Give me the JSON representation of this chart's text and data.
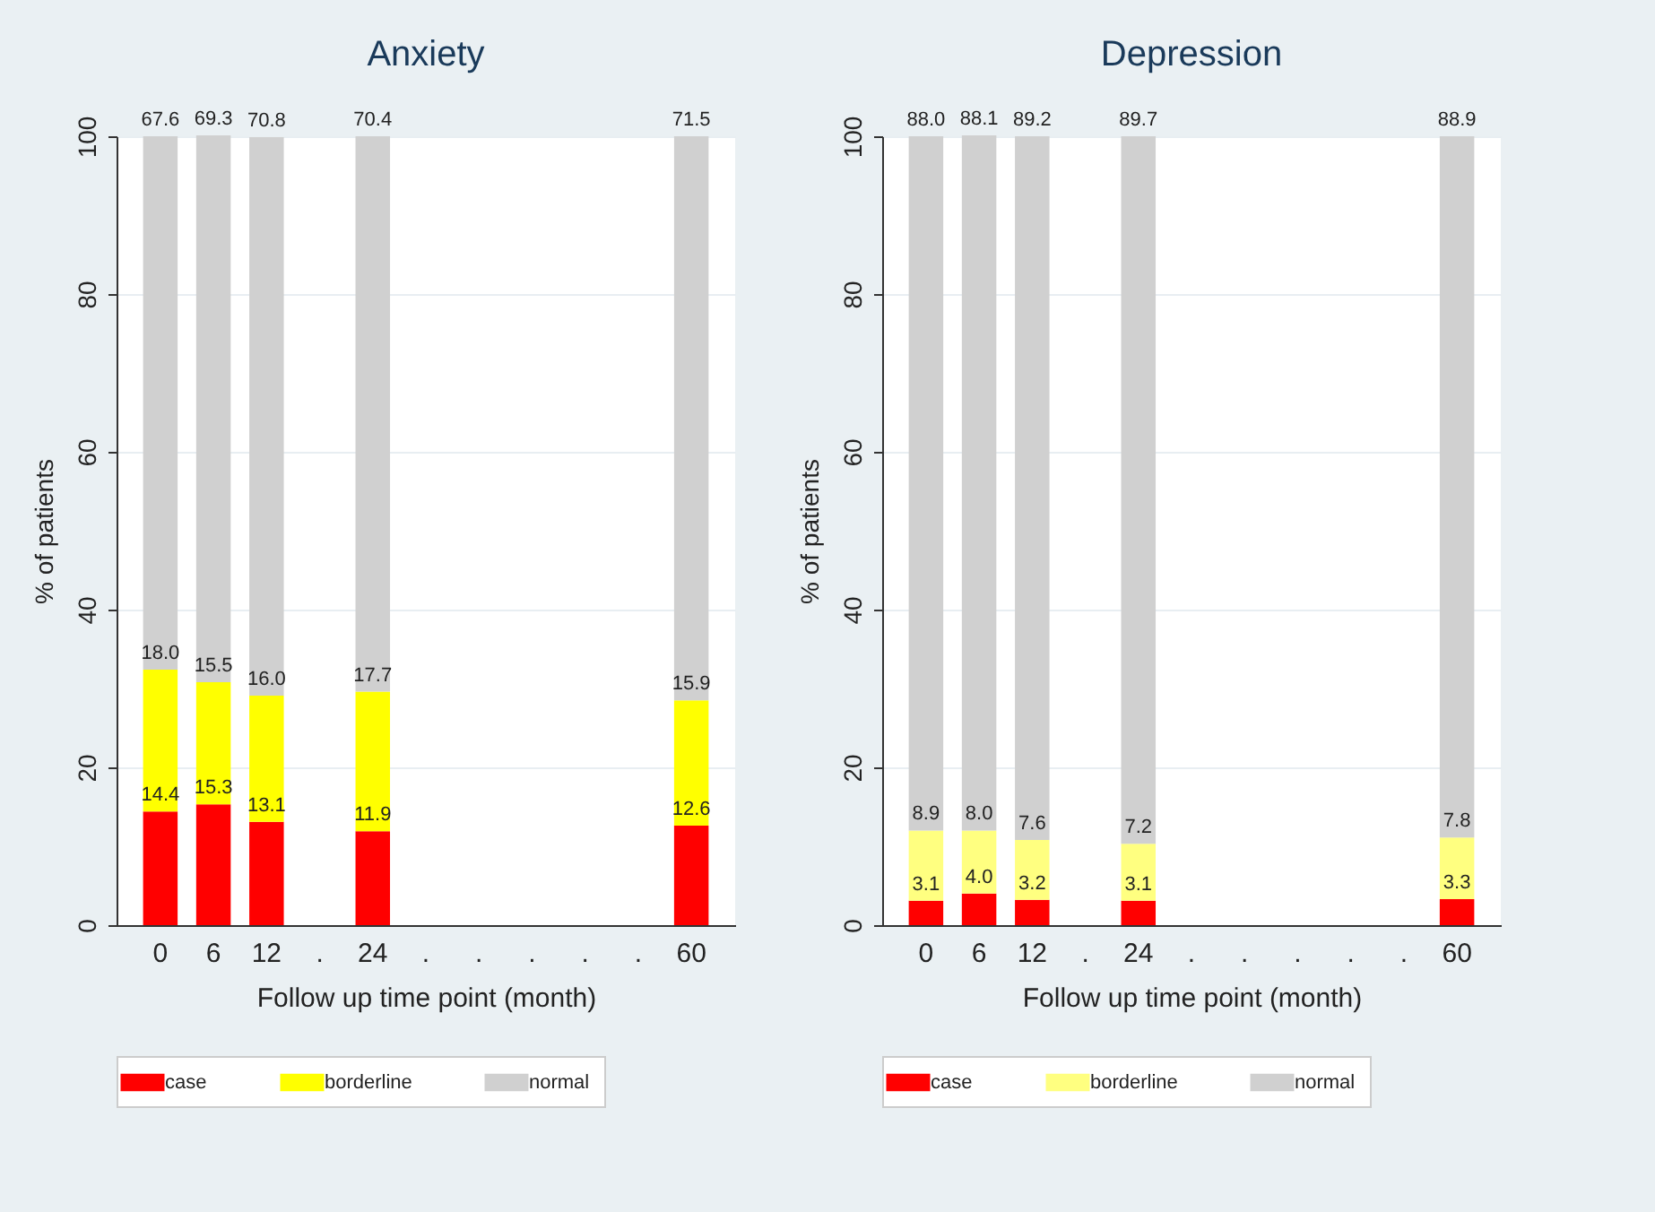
{
  "chart_data": [
    {
      "type": "bar",
      "stacked": true,
      "title": "Anxiety",
      "xlabel": "Follow up time point (month)",
      "ylabel": "% of patients",
      "categories": [
        "0",
        "6",
        "12",
        ".",
        "24",
        ".",
        ".",
        ".",
        ".",
        ".",
        "60"
      ],
      "series": [
        {
          "name": "case",
          "color": "#ff0000",
          "values": [
            14.4,
            15.3,
            13.1,
            null,
            11.9,
            null,
            null,
            null,
            null,
            null,
            12.6
          ],
          "value_labels": [
            "14.4",
            "15.3",
            "13.1",
            null,
            "11.9",
            null,
            null,
            null,
            null,
            null,
            "12.6"
          ]
        },
        {
          "name": "borderline",
          "color": "#ffff00",
          "values": [
            18.0,
            15.5,
            16.0,
            null,
            17.7,
            null,
            null,
            null,
            null,
            null,
            15.9
          ],
          "value_labels": [
            "18.0",
            "15.5",
            "16.0",
            null,
            "17.7",
            null,
            null,
            null,
            null,
            null,
            "15.9"
          ]
        },
        {
          "name": "normal",
          "color": "#d0d0d0",
          "values": [
            67.6,
            69.3,
            70.8,
            null,
            70.4,
            null,
            null,
            null,
            null,
            null,
            71.5
          ],
          "value_labels": [
            "67.6",
            "69.3",
            "70.8",
            null,
            "70.4",
            null,
            null,
            null,
            null,
            null,
            "71.5"
          ]
        }
      ],
      "ylim": [
        0,
        100
      ],
      "yticks": [
        0,
        20,
        40,
        60,
        80,
        100
      ],
      "grid": "y",
      "legend": "bottom"
    },
    {
      "type": "bar",
      "stacked": true,
      "title": "Depression",
      "xlabel": "Follow up time point (month)",
      "ylabel": "% of patients",
      "categories": [
        "0",
        "6",
        "12",
        ".",
        "24",
        ".",
        ".",
        ".",
        ".",
        ".",
        "60"
      ],
      "series": [
        {
          "name": "case",
          "color": "#ff0000",
          "values": [
            3.1,
            4.0,
            3.2,
            null,
            3.1,
            null,
            null,
            null,
            null,
            null,
            3.3
          ],
          "value_labels": [
            "3.1",
            "4.0",
            "3.2",
            null,
            "3.1",
            null,
            null,
            null,
            null,
            null,
            "3.3"
          ]
        },
        {
          "name": "borderline",
          "color": "#ffff80",
          "values": [
            8.9,
            8.0,
            7.6,
            null,
            7.2,
            null,
            null,
            null,
            null,
            null,
            7.8
          ],
          "value_labels": [
            "8.9",
            "8.0",
            "7.6",
            null,
            "7.2",
            null,
            null,
            null,
            null,
            null,
            "7.8"
          ]
        },
        {
          "name": "normal",
          "color": "#d0d0d0",
          "values": [
            88.0,
            88.1,
            89.2,
            null,
            89.7,
            null,
            null,
            null,
            null,
            null,
            88.9
          ],
          "value_labels": [
            "88.0",
            "88.1",
            "89.2",
            null,
            "89.7",
            null,
            null,
            null,
            null,
            null,
            "88.9"
          ]
        }
      ],
      "ylim": [
        0,
        100
      ],
      "yticks": [
        0,
        20,
        40,
        60,
        80,
        100
      ],
      "grid": "y",
      "legend": "bottom"
    }
  ]
}
